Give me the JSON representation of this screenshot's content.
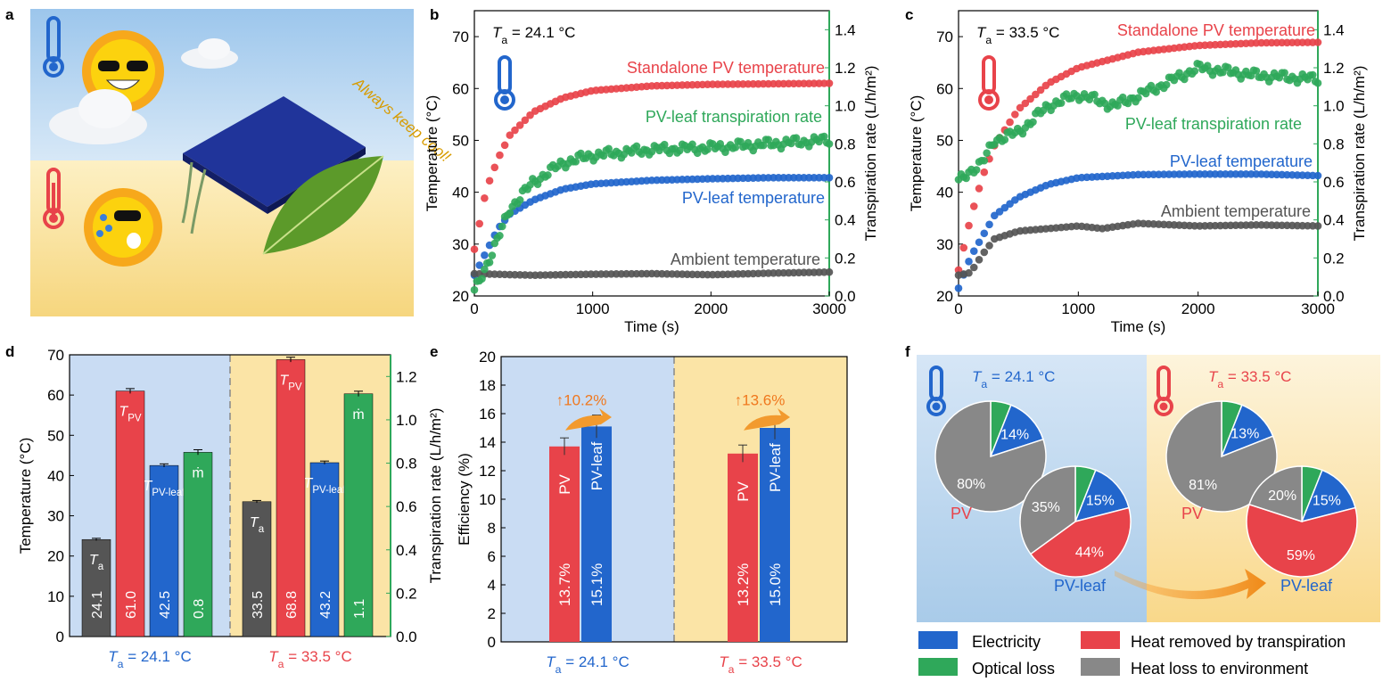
{
  "panel_letters": [
    "a",
    "b",
    "c",
    "d",
    "e",
    "f"
  ],
  "colors": {
    "red": "#e8434a",
    "blue": "#2266cc",
    "green": "#2fa85a",
    "gray": "#555555",
    "lightblue": "#c9dcf3",
    "lightyellow": "#fbe4a6"
  },
  "illustration": {
    "caption": "Always keep cool!"
  },
  "chart_data": [
    {
      "panel": "b",
      "type": "scatter",
      "annotation": "T_a = 24.1 °C",
      "xlabel": "Time (s)",
      "ylabel": "Temperature (°C)",
      "y2label": "Transpiration rate (L/h/m²)",
      "xlim": [
        0,
        3000
      ],
      "ylim": [
        20,
        75
      ],
      "y2lim": [
        0,
        1.5
      ],
      "xticks": [
        "0",
        "1000",
        "2000",
        "3000"
      ],
      "yticks": [
        "20",
        "30",
        "40",
        "50",
        "60",
        "70"
      ],
      "y2ticks": [
        "0.0",
        "0.2",
        "0.4",
        "0.6",
        "0.8",
        "1.0",
        "1.2",
        "1.4"
      ],
      "series": [
        {
          "name": "Standalone PV temperature",
          "color": "#e8434a",
          "axis": "left",
          "x": [
            0,
            100,
            200,
            300,
            500,
            750,
            1000,
            1500,
            2000,
            2500,
            3000
          ],
          "y": [
            29,
            40.5,
            46.5,
            51,
            55.5,
            58.2,
            59.6,
            60.5,
            60.8,
            60.9,
            61.0
          ]
        },
        {
          "name": "PV-leaf temperature",
          "color": "#2266cc",
          "axis": "left",
          "x": [
            0,
            100,
            200,
            300,
            500,
            750,
            1000,
            1500,
            2000,
            2500,
            3000
          ],
          "y": [
            24,
            28.5,
            33,
            35.8,
            38.5,
            40.6,
            41.6,
            42.3,
            42.6,
            42.8,
            42.8
          ]
        },
        {
          "name": "Ambient temperature",
          "color": "#555555",
          "axis": "left",
          "x": [
            0,
            500,
            1000,
            1500,
            2000,
            2500,
            3000
          ],
          "y": [
            24.3,
            24.0,
            24.2,
            24.3,
            24.1,
            24.4,
            24.6
          ]
        },
        {
          "name": "PV-leaf transpiration rate",
          "color": "#2fa85a",
          "axis": "right",
          "x": [
            0,
            100,
            200,
            300,
            500,
            750,
            1000,
            1500,
            2000,
            2500,
            3000
          ],
          "y": [
            0.02,
            0.16,
            0.3,
            0.46,
            0.6,
            0.7,
            0.74,
            0.77,
            0.78,
            0.8,
            0.82
          ]
        }
      ]
    },
    {
      "panel": "c",
      "type": "scatter",
      "annotation": "T_a = 33.5 °C",
      "xlabel": "Time (s)",
      "ylabel": "Temperature (°C)",
      "y2label": "Transpiration rate (L/h/m²)",
      "xlim": [
        0,
        3000
      ],
      "ylim": [
        20,
        75
      ],
      "y2lim": [
        0,
        1.5
      ],
      "xticks": [
        "0",
        "1000",
        "2000",
        "3000"
      ],
      "yticks": [
        "20",
        "30",
        "40",
        "50",
        "60",
        "70"
      ],
      "y2ticks": [
        "0.0",
        "0.2",
        "0.4",
        "0.6",
        "0.8",
        "1.0",
        "1.2",
        "1.4"
      ],
      "series": [
        {
          "name": "Standalone PV temperature",
          "color": "#e8434a",
          "axis": "left",
          "x": [
            0,
            100,
            200,
            300,
            500,
            750,
            1000,
            1500,
            2000,
            2500,
            3000
          ],
          "y": [
            25,
            35,
            43,
            49,
            56,
            61,
            64,
            67,
            68.3,
            68.8,
            68.9
          ]
        },
        {
          "name": "PV-leaf temperature",
          "color": "#2266cc",
          "axis": "left",
          "x": [
            0,
            100,
            200,
            300,
            500,
            750,
            1000,
            1500,
            2000,
            2500,
            3000
          ],
          "y": [
            21.5,
            27.5,
            31.5,
            35.5,
            39,
            41.5,
            42.8,
            43.4,
            43.5,
            43.5,
            43.2
          ]
        },
        {
          "name": "Ambient temperature",
          "color": "#555555",
          "axis": "left",
          "x": [
            0,
            100,
            200,
            300,
            500,
            1000,
            1200,
            1500,
            2000,
            2500,
            3000
          ],
          "y": [
            24,
            24.5,
            28,
            31,
            32.5,
            33.5,
            33.0,
            34.0,
            33.5,
            33.7,
            33.5
          ]
        },
        {
          "name": "PV-leaf transpiration rate",
          "color": "#2fa85a",
          "axis": "right",
          "x": [
            0,
            100,
            200,
            300,
            500,
            750,
            1000,
            1300,
            1600,
            2000,
            2500,
            3000
          ],
          "y": [
            0.6,
            0.66,
            0.7,
            0.82,
            0.86,
            1.0,
            1.06,
            1.0,
            1.08,
            1.2,
            1.16,
            1.14
          ]
        }
      ]
    },
    {
      "panel": "d",
      "type": "bar",
      "ylabel": "Temperature (°C)",
      "y2label": "Transpiration rate (L/h/m²)",
      "ylim": [
        0,
        70
      ],
      "y2lim": [
        0,
        1.3
      ],
      "yticks": [
        "0",
        "10",
        "20",
        "30",
        "40",
        "50",
        "60",
        "70"
      ],
      "y2ticks": [
        "0.0",
        "0.2",
        "0.4",
        "0.6",
        "0.8",
        "1.0",
        "1.2"
      ],
      "groups": [
        {
          "label": "T_a = 24.1 °C",
          "bars": [
            {
              "name": "T_a",
              "value": 24.1,
              "text": "24.1",
              "color": "#555555",
              "axis": "left",
              "err": 0.3
            },
            {
              "name": "T_PV",
              "value": 61.0,
              "text": "61.0",
              "color": "#e8434a",
              "axis": "left",
              "err": 0.6
            },
            {
              "name": "T_PV-leaf",
              "value": 42.5,
              "text": "42.5",
              "color": "#2266cc",
              "axis": "left",
              "err": 0.4
            },
            {
              "name": "ṁ",
              "value": 0.85,
              "text": "0.8",
              "color": "#2fa85a",
              "axis": "right",
              "err": 0.012
            }
          ]
        },
        {
          "label": "T_a = 33.5 °C",
          "bars": [
            {
              "name": "T_a",
              "value": 33.5,
              "text": "33.5",
              "color": "#555555",
              "axis": "left",
              "err": 0.3
            },
            {
              "name": "T_PV",
              "value": 68.8,
              "text": "68.8",
              "color": "#e8434a",
              "axis": "left",
              "err": 0.6
            },
            {
              "name": "T_PV-leaf",
              "value": 43.2,
              "text": "43.2",
              "color": "#2266cc",
              "axis": "left",
              "err": 0.4
            },
            {
              "name": "ṁ",
              "value": 1.12,
              "text": "1.1",
              "color": "#2fa85a",
              "axis": "right",
              "err": 0.012
            }
          ]
        }
      ]
    },
    {
      "panel": "e",
      "type": "bar",
      "ylabel": "Efficiency (%)",
      "ylim": [
        0,
        20
      ],
      "yticks": [
        "0",
        "2",
        "4",
        "6",
        "8",
        "10",
        "12",
        "14",
        "16",
        "18",
        "20"
      ],
      "groups": [
        {
          "label": "T_a = 24.1 °C",
          "increase": "↑10.2%",
          "bars": [
            {
              "name": "PV",
              "value": 13.7,
              "text": "13.7%",
              "color": "#e8434a",
              "err": 0.6
            },
            {
              "name": "PV-leaf",
              "value": 15.1,
              "text": "15.1%",
              "color": "#2266cc",
              "err": 0.8
            }
          ]
        },
        {
          "label": "T_a = 33.5 °C",
          "increase": "↑13.6%",
          "bars": [
            {
              "name": "PV",
              "value": 13.2,
              "text": "13.2%",
              "color": "#e8434a",
              "err": 0.6
            },
            {
              "name": "PV-leaf",
              "value": 15.0,
              "text": "15.0%",
              "color": "#2266cc",
              "err": 0.8
            }
          ]
        }
      ]
    },
    {
      "panel": "f",
      "type": "pie",
      "groups": [
        {
          "label": "T_a = 24.1 °C",
          "pies": [
            {
              "name": "PV",
              "slices": [
                {
                  "cat": "Optical loss",
                  "v": 6,
                  "t": ""
                },
                {
                  "cat": "Electricity",
                  "v": 14,
                  "t": "14%"
                },
                {
                  "cat": "Heat loss to environment",
                  "v": 80,
                  "t": "80%"
                }
              ]
            },
            {
              "name": "PV-leaf",
              "slices": [
                {
                  "cat": "Optical loss",
                  "v": 6,
                  "t": ""
                },
                {
                  "cat": "Electricity",
                  "v": 15,
                  "t": "15%"
                },
                {
                  "cat": "Heat removed by transpiration",
                  "v": 44,
                  "t": "44%"
                },
                {
                  "cat": "Heat loss to environment",
                  "v": 35,
                  "t": "35%"
                }
              ]
            }
          ]
        },
        {
          "label": "T_a = 33.5 °C",
          "pies": [
            {
              "name": "PV",
              "slices": [
                {
                  "cat": "Optical loss",
                  "v": 6,
                  "t": ""
                },
                {
                  "cat": "Electricity",
                  "v": 13,
                  "t": "13%"
                },
                {
                  "cat": "Heat loss to environment",
                  "v": 81,
                  "t": "81%"
                }
              ]
            },
            {
              "name": "PV-leaf",
              "slices": [
                {
                  "cat": "Optical loss",
                  "v": 6,
                  "t": ""
                },
                {
                  "cat": "Electricity",
                  "v": 15,
                  "t": "15%"
                },
                {
                  "cat": "Heat removed by transpiration",
                  "v": 59,
                  "t": "59%"
                },
                {
                  "cat": "Heat loss to environment",
                  "v": 20,
                  "t": "20%"
                }
              ]
            }
          ]
        }
      ],
      "legend": [
        {
          "label": "Electricity",
          "color": "#2266cc"
        },
        {
          "label": "Heat removed by transpiration",
          "color": "#e8434a"
        },
        {
          "label": "Optical loss",
          "color": "#2fa85a"
        },
        {
          "label": "Heat loss to environment",
          "color": "#888888"
        }
      ]
    }
  ]
}
